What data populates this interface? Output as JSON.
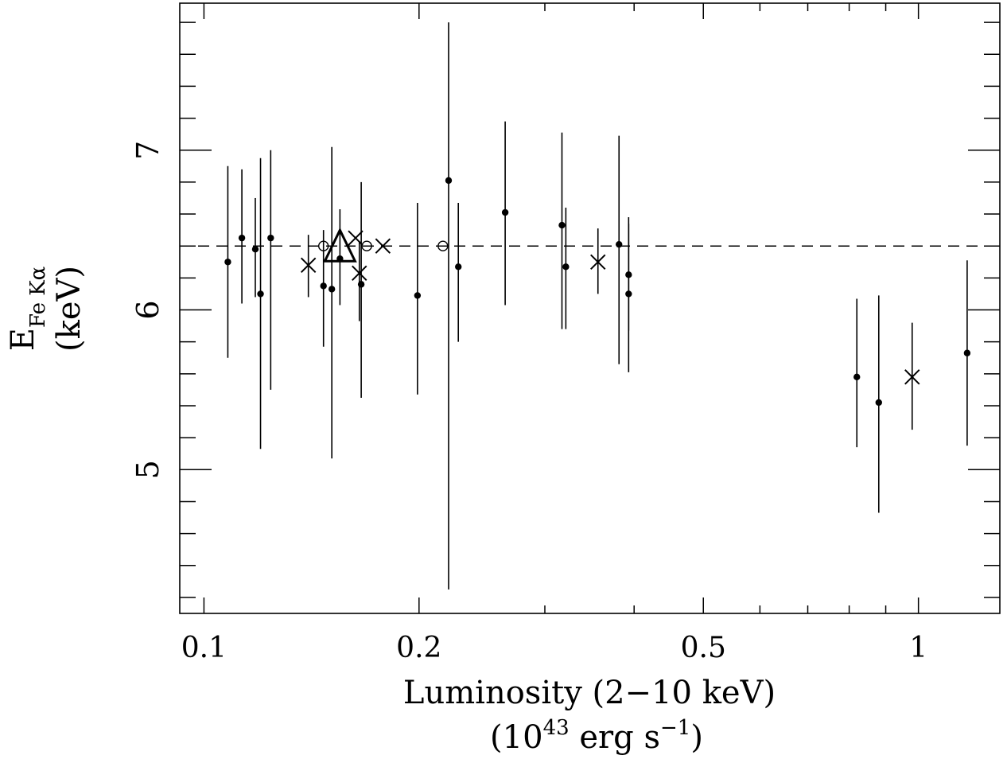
{
  "chart_data": {
    "type": "scatter",
    "title": "",
    "xlabel": {
      "line1": "Luminosity (2−10 keV)",
      "line2_open": "(10",
      "line2_exp": "43",
      "line2_mid": " erg s",
      "line2_exp2": "−1",
      "line2_close": ")"
    },
    "ylabel": {
      "main": "E",
      "sub": "Fe Kα",
      "unit": "(keV)"
    },
    "x_scale": "log",
    "xlim": [
      0.0925,
      1.3
    ],
    "ylim": [
      4.1,
      7.92
    ],
    "x_ticks": [
      {
        "value": 0.1,
        "label": "0.1"
      },
      {
        "value": 0.2,
        "label": "0.2"
      },
      {
        "value": 0.5,
        "label": "0.5"
      },
      {
        "value": 1,
        "label": "1"
      }
    ],
    "y_ticks": [
      {
        "value": 5,
        "label": "5"
      },
      {
        "value": 6,
        "label": "6"
      },
      {
        "value": 7,
        "label": "7"
      }
    ],
    "reference_line": {
      "y": 6.4,
      "style": "dashed"
    },
    "series": [
      {
        "marker": "filled-circle",
        "points": [
          {
            "x": 0.108,
            "y": 6.3,
            "ylo": 5.7,
            "yhi": 6.9
          },
          {
            "x": 0.113,
            "y": 6.45,
            "ylo": 6.04,
            "yhi": 6.88
          },
          {
            "x": 0.118,
            "y": 6.38,
            "ylo": 6.08,
            "yhi": 6.7
          },
          {
            "x": 0.12,
            "y": 6.1,
            "ylo": 5.13,
            "yhi": 6.95
          },
          {
            "x": 0.124,
            "y": 6.45,
            "ylo": 5.5,
            "yhi": 7.0
          },
          {
            "x": 0.147,
            "y": 6.15,
            "ylo": 5.77,
            "yhi": 6.5
          },
          {
            "x": 0.151,
            "y": 6.13,
            "ylo": 5.07,
            "yhi": 7.02
          },
          {
            "x": 0.155,
            "y": 6.32,
            "ylo": 6.03,
            "yhi": 6.63
          },
          {
            "x": 0.166,
            "y": 6.16,
            "ylo": 5.45,
            "yhi": 6.8
          },
          {
            "x": 0.199,
            "y": 6.09,
            "ylo": 5.47,
            "yhi": 6.67
          },
          {
            "x": 0.22,
            "y": 6.81,
            "ylo": 4.25,
            "yhi": 7.8
          },
          {
            "x": 0.227,
            "y": 6.27,
            "ylo": 5.8,
            "yhi": 6.67
          },
          {
            "x": 0.264,
            "y": 6.61,
            "ylo": 6.03,
            "yhi": 7.18
          },
          {
            "x": 0.317,
            "y": 6.53,
            "ylo": 5.88,
            "yhi": 7.11
          },
          {
            "x": 0.321,
            "y": 6.27,
            "ylo": 5.88,
            "yhi": 6.64
          },
          {
            "x": 0.381,
            "y": 6.41,
            "ylo": 5.66,
            "yhi": 7.09
          },
          {
            "x": 0.393,
            "y": 6.22,
            "ylo": 5.87,
            "yhi": 6.58
          },
          {
            "x": 0.393,
            "y": 6.1,
            "ylo": 5.61,
            "yhi": 6.54
          },
          {
            "x": 0.82,
            "y": 5.58,
            "ylo": 5.14,
            "yhi": 6.07
          },
          {
            "x": 0.88,
            "y": 5.42,
            "ylo": 4.73,
            "yhi": 6.09
          },
          {
            "x": 1.17,
            "y": 5.73,
            "ylo": 5.15,
            "yhi": 6.31
          }
        ]
      },
      {
        "marker": "cross",
        "points": [
          {
            "x": 0.14,
            "y": 6.28,
            "ylo": 6.08,
            "yhi": 6.47
          },
          {
            "x": 0.163,
            "y": 6.45,
            "ylo": null,
            "yhi": null
          },
          {
            "x": 0.165,
            "y": 6.23,
            "ylo": 5.93,
            "yhi": 6.43
          },
          {
            "x": 0.178,
            "y": 6.4,
            "ylo": null,
            "yhi": null
          },
          {
            "x": 0.356,
            "y": 6.3,
            "ylo": 6.1,
            "yhi": 6.51
          },
          {
            "x": 0.98,
            "y": 5.58,
            "ylo": 5.25,
            "yhi": 5.92
          }
        ]
      },
      {
        "marker": "open-circle",
        "points": [
          {
            "x": 0.147,
            "y": 6.4
          },
          {
            "x": 0.169,
            "y": 6.4
          },
          {
            "x": 0.216,
            "y": 6.4
          }
        ]
      },
      {
        "marker": "open-triangle",
        "points": [
          {
            "x": 0.155,
            "y": 6.37
          }
        ]
      }
    ]
  }
}
